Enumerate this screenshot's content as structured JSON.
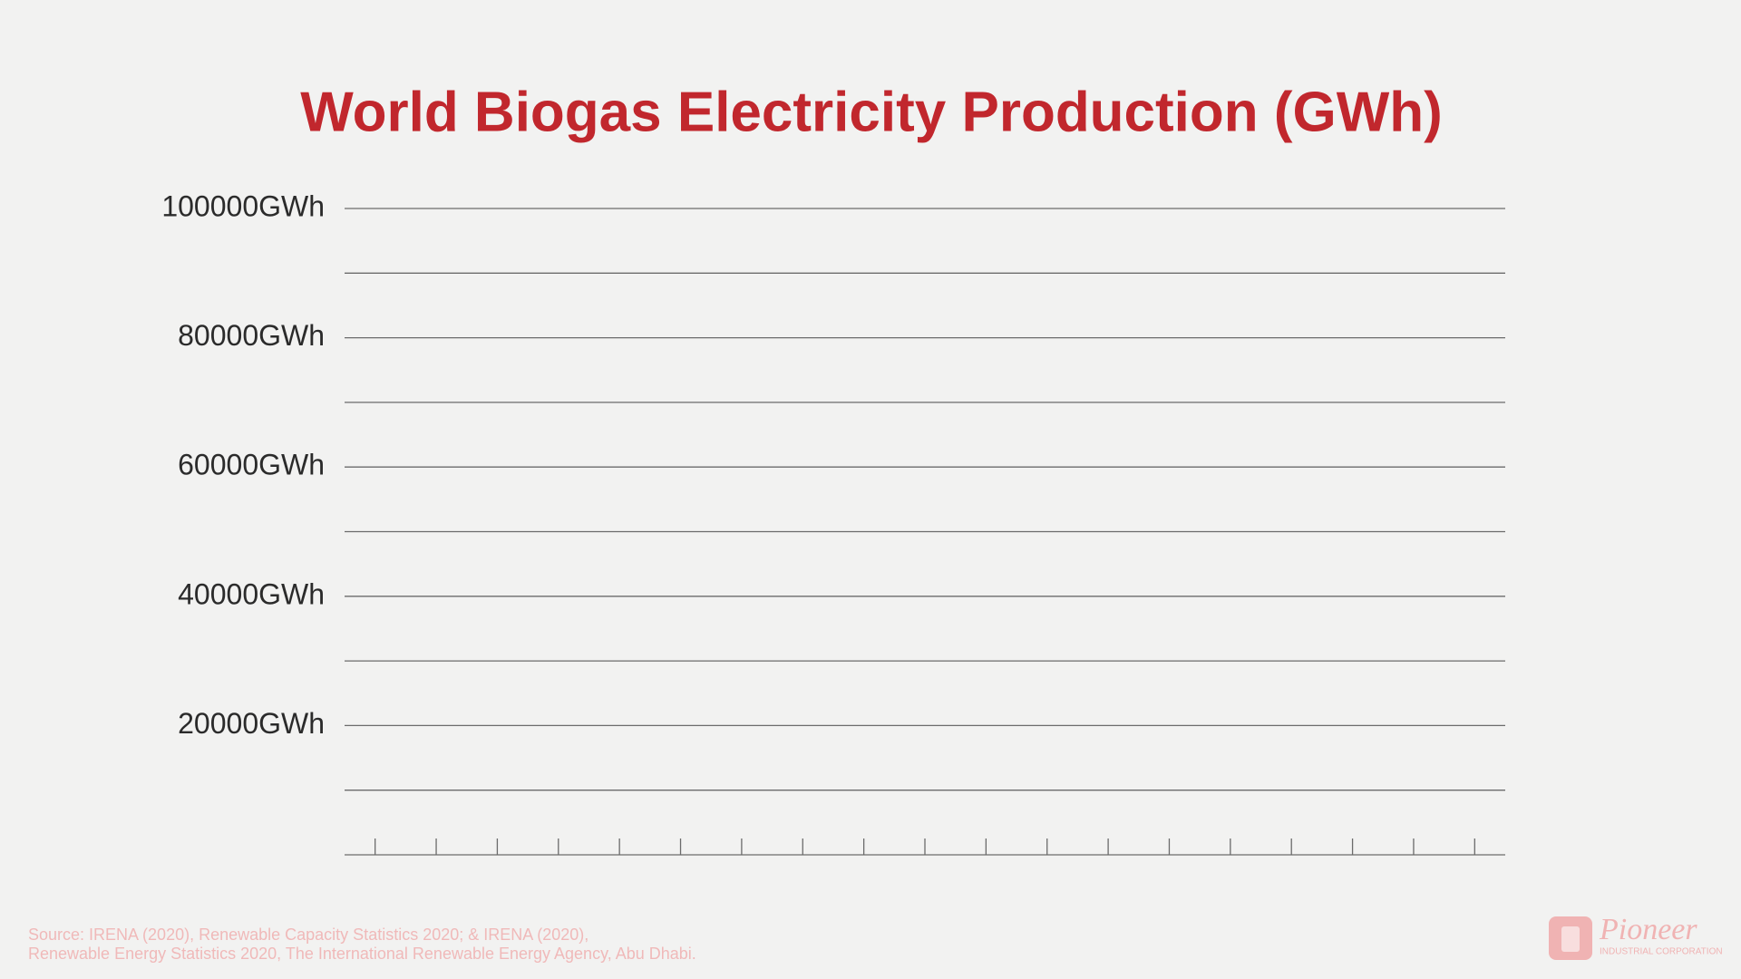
{
  "chart_data": {
    "type": "bar",
    "title": "World Biogas Electricity Production (GWh)",
    "categories": [
      null,
      null,
      null,
      null,
      null,
      null,
      null,
      null,
      null,
      null,
      null,
      null,
      null,
      null,
      null,
      null,
      null,
      null,
      null
    ],
    "ylim": [
      0,
      100000
    ],
    "yticks": [
      {
        "value": 20000,
        "label": "20000GWh"
      },
      {
        "value": 40000,
        "label": "40000GWh"
      },
      {
        "value": 60000,
        "label": "60000GWh"
      },
      {
        "value": 80000,
        "label": "80000GWh"
      },
      {
        "value": 100000,
        "label": "100000GWh"
      }
    ],
    "minor_yticks": [
      10000,
      30000,
      50000,
      70000,
      90000
    ],
    "grid": true,
    "title_color": "#c1272d"
  },
  "source": [
    "Source: IRENA (2020), Renewable Capacity Statistics 2020; & IRENA (2020),",
    "Renewable Energy Statistics 2020, The International Renewable Energy Agency, Abu Dhabi."
  ],
  "logo": {
    "name": "Pioneer",
    "tagline": "INDUSTRIAL CORPORATION"
  }
}
